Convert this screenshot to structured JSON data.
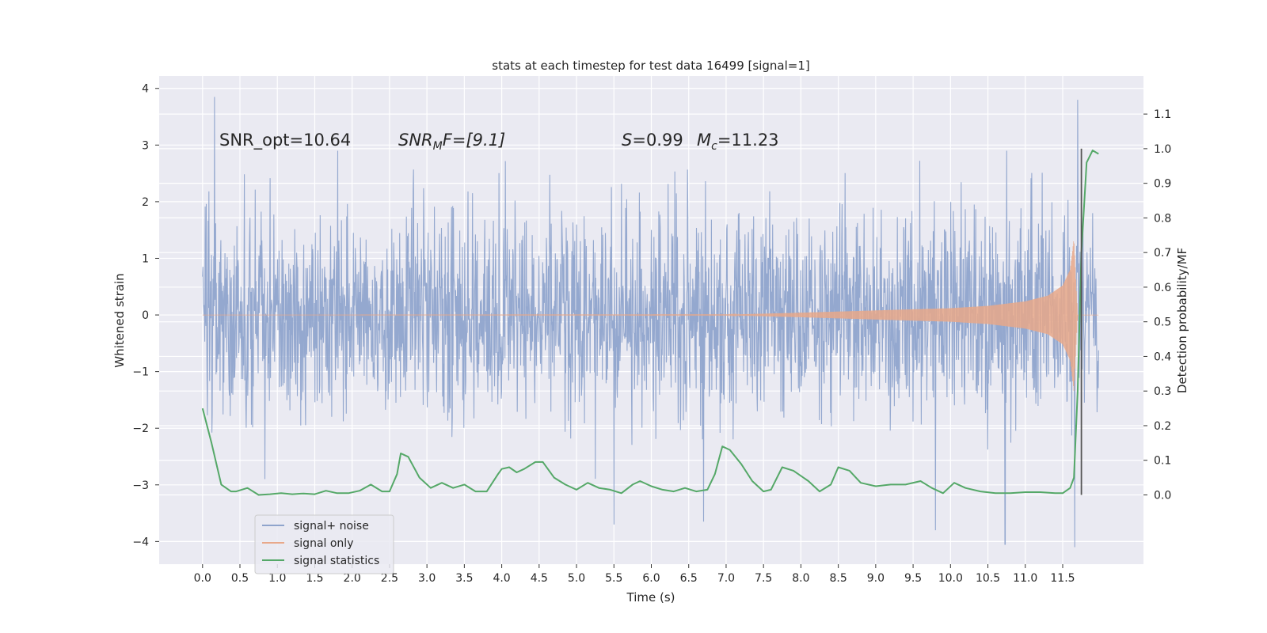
{
  "chart_data": {
    "type": "line",
    "title": "stats at each timestep for test data 16499 [signal=1]",
    "xlabel": "Time (s)",
    "ylabel": "Whitened strain",
    "ylabel_right": "Detection probability/MF",
    "xlim": [
      -0.58,
      12.58
    ],
    "ylim": [
      -4.4,
      4.22
    ],
    "ylim_right": [
      -0.2,
      1.21
    ],
    "xticks": [
      "0.0",
      "0.5",
      "1.0",
      "1.5",
      "2.0",
      "2.5",
      "3.0",
      "3.5",
      "4.0",
      "4.5",
      "5.0",
      "5.5",
      "6.0",
      "6.5",
      "7.0",
      "7.5",
      "8.0",
      "8.5",
      "9.0",
      "9.5",
      "10.0",
      "10.5",
      "11.0",
      "11.5"
    ],
    "yticks": [
      "4",
      "3",
      "2",
      "1",
      "0",
      "−1",
      "−2",
      "−3",
      "−4"
    ],
    "yticks_right": [
      "1.1",
      "1.0",
      "0.9",
      "0.8",
      "0.7",
      "0.6",
      "0.5",
      "0.4",
      "0.3",
      "0.2",
      "0.1",
      "0.0"
    ],
    "grid": true,
    "legend_position": "lower-left",
    "annotations": {
      "snr_opt": "SNR_opt=10.64",
      "snr_mf_main": "SNR",
      "snr_mf_sub": "M",
      "snr_mf_rest": "F=[9.1]",
      "s_label": "S",
      "s_value": "=0.99",
      "mc_main": "M",
      "mc_sub": "c",
      "mc_value": "=11.23"
    },
    "series": [
      {
        "name": "signal+ noise",
        "color": "#8fa4cc",
        "description_envelope": {
          "t_range": [
            0.0,
            11.98
          ],
          "typical_amplitude": 1.7,
          "peaks": [
            [
              0.16,
              3.85
            ],
            [
              11.7,
              3.8
            ],
            [
              10.73,
              -4.05
            ],
            [
              11.66,
              -4.1
            ],
            [
              5.5,
              -3.7
            ],
            [
              6.7,
              -3.65
            ],
            [
              9.8,
              -3.8
            ]
          ]
        }
      },
      {
        "name": "signal only",
        "color": "#e8a88a",
        "envelope": {
          "t": [
            0.0,
            7.0,
            8.0,
            9.0,
            10.0,
            10.5,
            11.0,
            11.3,
            11.5,
            11.6,
            11.65,
            11.7
          ],
          "amp": [
            0.0,
            0.005,
            0.04,
            0.08,
            0.12,
            0.16,
            0.24,
            0.34,
            0.52,
            0.8,
            1.35,
            0.0
          ]
        }
      },
      {
        "name": "signal statistics",
        "color": "#55a868",
        "x": [
          0.0,
          0.12,
          0.25,
          0.38,
          0.45,
          0.6,
          0.75,
          0.9,
          1.05,
          1.2,
          1.35,
          1.5,
          1.65,
          1.8,
          1.95,
          2.1,
          2.25,
          2.4,
          2.5,
          2.6,
          2.65,
          2.75,
          2.9,
          3.05,
          3.2,
          3.35,
          3.5,
          3.65,
          3.8,
          3.95,
          4.0,
          4.1,
          4.2,
          4.3,
          4.45,
          4.55,
          4.7,
          4.85,
          5.0,
          5.15,
          5.3,
          5.45,
          5.6,
          5.75,
          5.85,
          6.0,
          6.15,
          6.3,
          6.45,
          6.6,
          6.75,
          6.85,
          6.95,
          7.05,
          7.2,
          7.35,
          7.5,
          7.6,
          7.75,
          7.9,
          8.1,
          8.25,
          8.4,
          8.5,
          8.65,
          8.8,
          9.0,
          9.2,
          9.4,
          9.6,
          9.75,
          9.9,
          10.05,
          10.2,
          10.4,
          10.6,
          10.8,
          11.0,
          11.2,
          11.4,
          11.5,
          11.6,
          11.65,
          11.7,
          11.75,
          11.82,
          11.9,
          11.98
        ],
        "y": [
          0.25,
          0.15,
          0.03,
          0.01,
          0.01,
          0.02,
          0.0,
          0.002,
          0.005,
          0.002,
          0.004,
          0.002,
          0.012,
          0.005,
          0.005,
          0.012,
          0.03,
          0.01,
          0.01,
          0.06,
          0.12,
          0.11,
          0.05,
          0.02,
          0.035,
          0.02,
          0.03,
          0.01,
          0.01,
          0.06,
          0.075,
          0.08,
          0.065,
          0.075,
          0.095,
          0.095,
          0.05,
          0.03,
          0.015,
          0.035,
          0.02,
          0.015,
          0.005,
          0.03,
          0.04,
          0.025,
          0.015,
          0.01,
          0.02,
          0.01,
          0.015,
          0.06,
          0.14,
          0.13,
          0.09,
          0.04,
          0.01,
          0.015,
          0.08,
          0.07,
          0.04,
          0.01,
          0.03,
          0.08,
          0.07,
          0.035,
          0.025,
          0.03,
          0.03,
          0.04,
          0.02,
          0.005,
          0.035,
          0.02,
          0.01,
          0.005,
          0.005,
          0.008,
          0.008,
          0.005,
          0.005,
          0.02,
          0.05,
          0.3,
          0.7,
          0.96,
          0.995,
          0.985
        ]
      }
    ],
    "vertical_marker": {
      "x": 11.75,
      "y_from": 0.0,
      "y_to": 1.0,
      "color": "#555555"
    }
  }
}
